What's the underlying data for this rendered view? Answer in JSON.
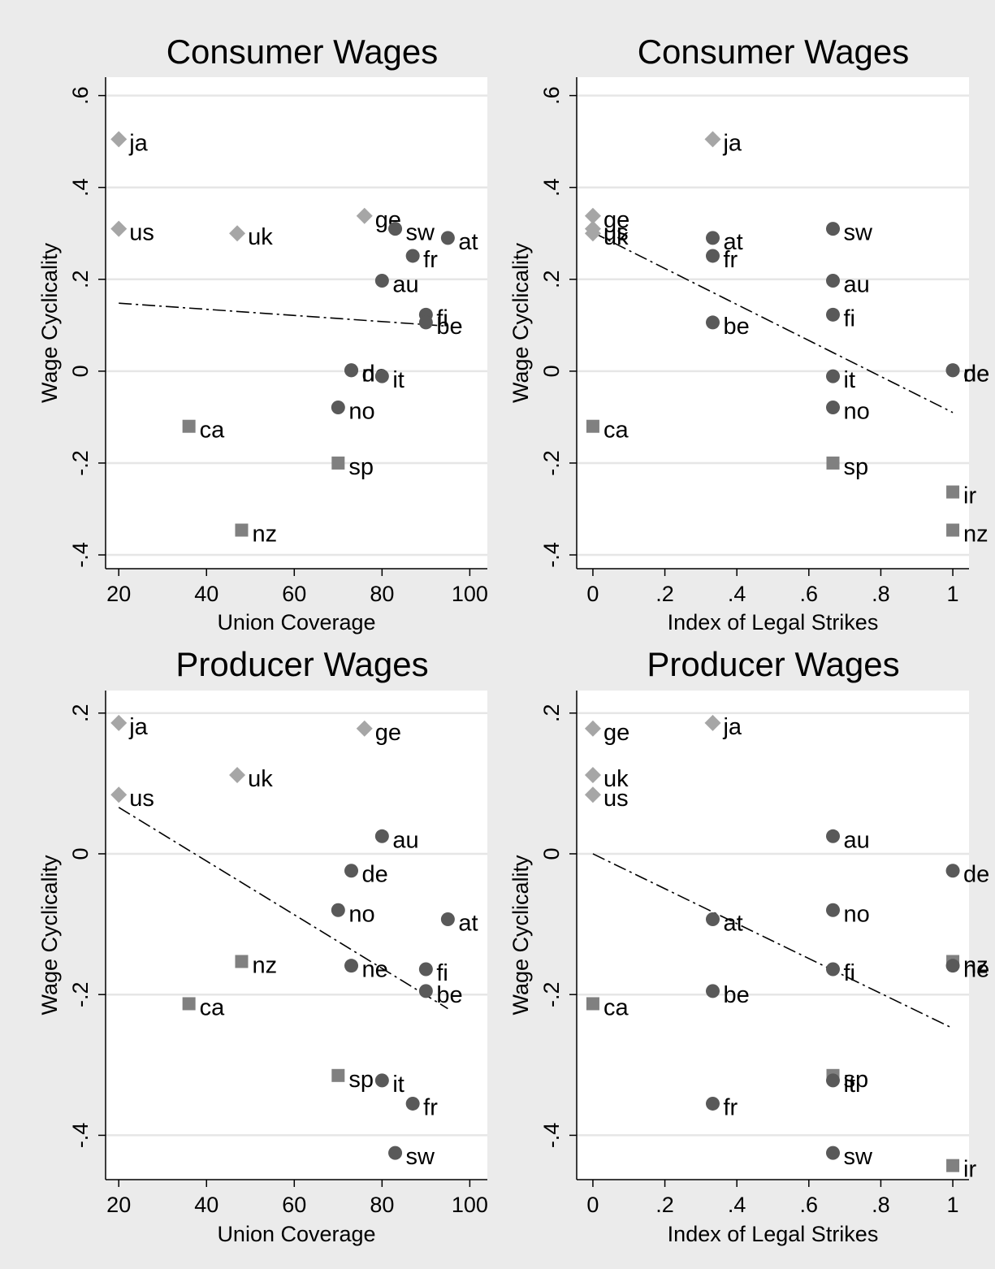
{
  "figure": {
    "background": "#ebebeb",
    "plot_background": "#ffffff"
  },
  "style": {
    "diamond_color": "#a6a6a6",
    "circle_color": "#595959",
    "square_color": "#808080",
    "grid_color": "#e6e6e6",
    "fit_line_color": "#000000"
  },
  "chart_data": [
    {
      "type": "scatter",
      "title": "Consumer Wages",
      "xlabel": "Union Coverage",
      "ylabel": "Wage Cyclicality",
      "xlim": [
        17,
        104
      ],
      "ylim": [
        -0.43,
        0.64
      ],
      "xticks": [
        20,
        40,
        60,
        80,
        100
      ],
      "xtick_labels": [
        "20",
        "40",
        "60",
        "80",
        "100"
      ],
      "yticks": [
        -0.4,
        -0.2,
        0,
        0.2,
        0.4,
        0.6
      ],
      "ytick_labels": [
        "-.4",
        "-.2",
        "0",
        ".2",
        ".4",
        ".6"
      ],
      "grid": true,
      "fit_line": {
        "style": "dash-dot",
        "x": [
          20,
          95
        ],
        "y": [
          0.148,
          0.098
        ]
      },
      "points": [
        {
          "label": "ja",
          "x": 20,
          "y": 0.505,
          "marker": "diamond"
        },
        {
          "label": "us",
          "x": 20,
          "y": 0.31,
          "marker": "diamond"
        },
        {
          "label": "uk",
          "x": 47,
          "y": 0.3,
          "marker": "diamond"
        },
        {
          "label": "ge",
          "x": 76,
          "y": 0.338,
          "marker": "diamond"
        },
        {
          "label": "sw",
          "x": 83,
          "y": 0.31,
          "marker": "circle"
        },
        {
          "label": "at",
          "x": 95,
          "y": 0.29,
          "marker": "circle"
        },
        {
          "label": "fr",
          "x": 87,
          "y": 0.251,
          "marker": "circle"
        },
        {
          "label": "au",
          "x": 80,
          "y": 0.197,
          "marker": "circle"
        },
        {
          "label": "fi",
          "x": 90,
          "y": 0.123,
          "marker": "circle"
        },
        {
          "label": "be",
          "x": 90,
          "y": 0.106,
          "marker": "circle"
        },
        {
          "label": "de",
          "x": 73,
          "y": 0.002,
          "marker": "circle"
        },
        {
          "label": "ne",
          "x": 73,
          "y": 0.002,
          "marker": "circle"
        },
        {
          "label": "it",
          "x": 80,
          "y": -0.011,
          "marker": "circle"
        },
        {
          "label": "no",
          "x": 70,
          "y": -0.079,
          "marker": "circle"
        },
        {
          "label": "ca",
          "x": 36,
          "y": -0.12,
          "marker": "square"
        },
        {
          "label": "sp",
          "x": 70,
          "y": -0.2,
          "marker": "square"
        },
        {
          "label": "nz",
          "x": 48,
          "y": -0.346,
          "marker": "square"
        }
      ]
    },
    {
      "type": "scatter",
      "title": "Consumer Wages",
      "xlabel": "Index of Legal Strikes",
      "ylabel": "Wage Cyclicality",
      "xlim": [
        -0.045,
        1.045
      ],
      "ylim": [
        -0.43,
        0.64
      ],
      "xticks": [
        0,
        0.2,
        0.4,
        0.6,
        0.8,
        1
      ],
      "xtick_labels": [
        "0",
        ".2",
        ".4",
        ".6",
        ".8",
        "1"
      ],
      "yticks": [
        -0.4,
        -0.2,
        0,
        0.2,
        0.4,
        0.6
      ],
      "ytick_labels": [
        "-.4",
        "-.2",
        "0",
        ".2",
        ".4",
        ".6"
      ],
      "grid": true,
      "fit_line": {
        "style": "dash-dot",
        "x": [
          0,
          1
        ],
        "y": [
          0.302,
          -0.09
        ]
      },
      "points": [
        {
          "label": "ja",
          "x": 0.333,
          "y": 0.505,
          "marker": "diamond"
        },
        {
          "label": "ge",
          "x": 0,
          "y": 0.338,
          "marker": "diamond"
        },
        {
          "label": "us",
          "x": 0,
          "y": 0.31,
          "marker": "diamond"
        },
        {
          "label": "uk",
          "x": 0,
          "y": 0.3,
          "marker": "diamond"
        },
        {
          "label": "at",
          "x": 0.333,
          "y": 0.29,
          "marker": "circle"
        },
        {
          "label": "fr",
          "x": 0.333,
          "y": 0.251,
          "marker": "circle"
        },
        {
          "label": "be",
          "x": 0.333,
          "y": 0.106,
          "marker": "circle"
        },
        {
          "label": "sw",
          "x": 0.667,
          "y": 0.31,
          "marker": "circle"
        },
        {
          "label": "au",
          "x": 0.667,
          "y": 0.197,
          "marker": "circle"
        },
        {
          "label": "fi",
          "x": 0.667,
          "y": 0.123,
          "marker": "circle"
        },
        {
          "label": "it",
          "x": 0.667,
          "y": -0.011,
          "marker": "circle"
        },
        {
          "label": "no",
          "x": 0.667,
          "y": -0.079,
          "marker": "circle"
        },
        {
          "label": "de",
          "x": 1,
          "y": 0.002,
          "marker": "circle"
        },
        {
          "label": "ne",
          "x": 1,
          "y": 0.002,
          "marker": "circle"
        },
        {
          "label": "ca",
          "x": 0,
          "y": -0.12,
          "marker": "square"
        },
        {
          "label": "sp",
          "x": 0.667,
          "y": -0.2,
          "marker": "square"
        },
        {
          "label": "ir",
          "x": 1,
          "y": -0.263,
          "marker": "square"
        },
        {
          "label": "nz",
          "x": 1,
          "y": -0.346,
          "marker": "square"
        }
      ]
    },
    {
      "type": "scatter",
      "title": "Producer Wages",
      "xlabel": "Union Coverage",
      "ylabel": "Wage Cyclicality",
      "xlim": [
        17,
        104
      ],
      "ylim": [
        -0.463,
        0.232
      ],
      "xticks": [
        20,
        40,
        60,
        80,
        100
      ],
      "xtick_labels": [
        "20",
        "40",
        "60",
        "80",
        "100"
      ],
      "yticks": [
        -0.4,
        -0.2,
        0,
        0.2
      ],
      "ytick_labels": [
        "-.4",
        "-.2",
        "0",
        ".2"
      ],
      "grid": true,
      "fit_line": {
        "style": "dash-dot",
        "x": [
          20,
          95
        ],
        "y": [
          0.066,
          -0.22
        ]
      },
      "points": [
        {
          "label": "ja",
          "x": 20,
          "y": 0.186,
          "marker": "diamond"
        },
        {
          "label": "ge",
          "x": 76,
          "y": 0.178,
          "marker": "diamond"
        },
        {
          "label": "uk",
          "x": 47,
          "y": 0.112,
          "marker": "diamond"
        },
        {
          "label": "us",
          "x": 20,
          "y": 0.084,
          "marker": "diamond"
        },
        {
          "label": "au",
          "x": 80,
          "y": 0.025,
          "marker": "circle"
        },
        {
          "label": "de",
          "x": 73,
          "y": -0.024,
          "marker": "circle"
        },
        {
          "label": "no",
          "x": 70,
          "y": -0.08,
          "marker": "circle"
        },
        {
          "label": "at",
          "x": 95,
          "y": -0.093,
          "marker": "circle"
        },
        {
          "label": "nz",
          "x": 48,
          "y": -0.153,
          "marker": "square"
        },
        {
          "label": "ne",
          "x": 73,
          "y": -0.159,
          "marker": "circle"
        },
        {
          "label": "fi",
          "x": 90,
          "y": -0.164,
          "marker": "circle"
        },
        {
          "label": "be",
          "x": 90,
          "y": -0.195,
          "marker": "circle"
        },
        {
          "label": "ca",
          "x": 36,
          "y": -0.213,
          "marker": "square"
        },
        {
          "label": "sp",
          "x": 70,
          "y": -0.315,
          "marker": "square"
        },
        {
          "label": "it",
          "x": 80,
          "y": -0.322,
          "marker": "circle"
        },
        {
          "label": "fr",
          "x": 87,
          "y": -0.355,
          "marker": "circle"
        },
        {
          "label": "sw",
          "x": 83,
          "y": -0.425,
          "marker": "circle"
        }
      ]
    },
    {
      "type": "scatter",
      "title": "Producer Wages",
      "xlabel": "Index of Legal Strikes",
      "ylabel": "Wage Cyclicality",
      "xlim": [
        -0.045,
        1.045
      ],
      "ylim": [
        -0.463,
        0.232
      ],
      "xticks": [
        0,
        0.2,
        0.4,
        0.6,
        0.8,
        1
      ],
      "xtick_labels": [
        "0",
        ".2",
        ".4",
        ".6",
        ".8",
        "1"
      ],
      "yticks": [
        -0.4,
        -0.2,
        0,
        0.2
      ],
      "ytick_labels": [
        "-.4",
        "-.2",
        "0",
        ".2"
      ],
      "grid": true,
      "fit_line": {
        "style": "dash-dot",
        "x": [
          0,
          1
        ],
        "y": [
          0.0,
          -0.248
        ]
      },
      "points": [
        {
          "label": "ja",
          "x": 0.333,
          "y": 0.186,
          "marker": "diamond"
        },
        {
          "label": "ge",
          "x": 0,
          "y": 0.178,
          "marker": "diamond"
        },
        {
          "label": "uk",
          "x": 0,
          "y": 0.112,
          "marker": "diamond"
        },
        {
          "label": "us",
          "x": 0,
          "y": 0.084,
          "marker": "diamond"
        },
        {
          "label": "au",
          "x": 0.667,
          "y": 0.025,
          "marker": "circle"
        },
        {
          "label": "de",
          "x": 1,
          "y": -0.024,
          "marker": "circle"
        },
        {
          "label": "no",
          "x": 0.667,
          "y": -0.08,
          "marker": "circle"
        },
        {
          "label": "at",
          "x": 0.333,
          "y": -0.093,
          "marker": "circle"
        },
        {
          "label": "nz",
          "x": 1,
          "y": -0.153,
          "marker": "square"
        },
        {
          "label": "ne",
          "x": 1,
          "y": -0.159,
          "marker": "circle"
        },
        {
          "label": "fi",
          "x": 0.667,
          "y": -0.164,
          "marker": "circle"
        },
        {
          "label": "be",
          "x": 0.333,
          "y": -0.195,
          "marker": "circle"
        },
        {
          "label": "ca",
          "x": 0,
          "y": -0.213,
          "marker": "square"
        },
        {
          "label": "sp",
          "x": 0.667,
          "y": -0.315,
          "marker": "square"
        },
        {
          "label": "it",
          "x": 0.667,
          "y": -0.322,
          "marker": "circle"
        },
        {
          "label": "fr",
          "x": 0.333,
          "y": -0.355,
          "marker": "circle"
        },
        {
          "label": "sw",
          "x": 0.667,
          "y": -0.425,
          "marker": "circle"
        },
        {
          "label": "ir",
          "x": 1,
          "y": -0.443,
          "marker": "square"
        }
      ]
    }
  ]
}
